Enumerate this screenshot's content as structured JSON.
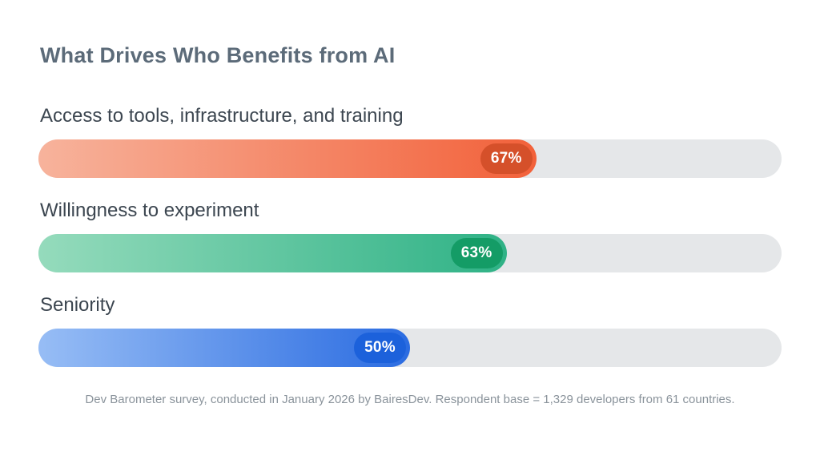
{
  "chart_data": {
    "type": "bar",
    "orientation": "horizontal",
    "title": "What Drives Who Benefits from AI",
    "categories": [
      "Access to tools, infrastructure, and training",
      "Willingness to experiment",
      "Seniority"
    ],
    "values": [
      67,
      63,
      50
    ],
    "value_labels": [
      "67%",
      "63%",
      "50%"
    ],
    "xlim": [
      0,
      100
    ],
    "grid": false,
    "legend": false,
    "footnote": "Dev Barometer survey, conducted in January 2026 by BairesDev. Respondent base = 1,329 developers from 61 countries."
  },
  "title": "What Drives Who Benefits from AI",
  "bars": [
    {
      "label": "Access to tools, infrastructure, and training",
      "value": 67,
      "badge": "67%",
      "gradient_from": "#F7B39C",
      "gradient_to": "#F2613A",
      "badge_color": "#D5502A"
    },
    {
      "label": "Willingness to experiment",
      "value": 63,
      "badge": "63%",
      "gradient_from": "#95DBBC",
      "gradient_to": "#2FB286",
      "badge_color": "#149C66"
    },
    {
      "label": "Seniority",
      "value": 50,
      "badge": "50%",
      "gradient_from": "#97BDF5",
      "gradient_to": "#2B6CE1",
      "badge_color": "#1C61DB"
    }
  ],
  "footnote": "Dev Barometer survey, conducted in January 2026 by BairesDev. Respondent base = 1,329 developers from 61 countries.",
  "colors": {
    "card_bg": "#FFFFFF",
    "track": "#E5E7E9",
    "title_text": "#5C6B79",
    "label_text": "#3C4650",
    "footnote_text": "#8A939B",
    "badge_text": "#FFFFFF"
  }
}
